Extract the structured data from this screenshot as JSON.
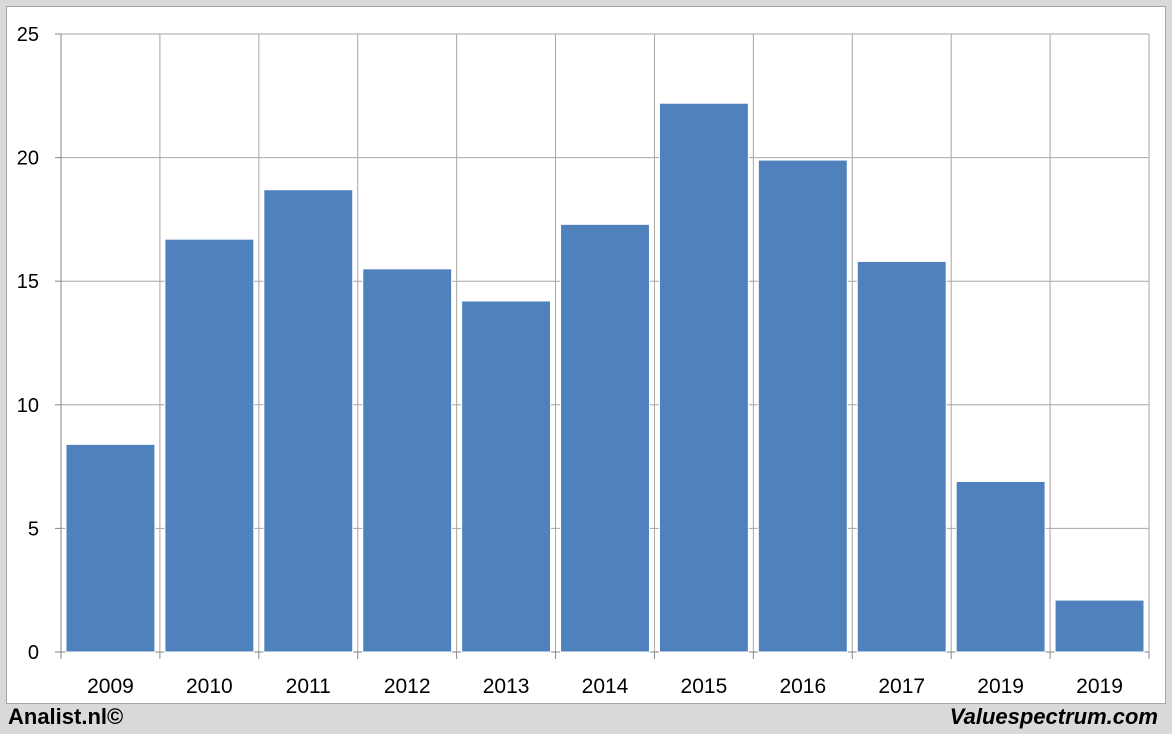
{
  "chart_data": {
    "type": "bar",
    "categories": [
      "2009",
      "2010",
      "2011",
      "2012",
      "2013",
      "2014",
      "2015",
      "2016",
      "2017",
      "2019",
      "2019"
    ],
    "values": [
      8.4,
      16.7,
      18.7,
      15.5,
      14.2,
      17.3,
      22.2,
      19.9,
      15.8,
      6.9,
      2.1
    ],
    "ylim": [
      0,
      25
    ],
    "yticks": [
      "0",
      "5",
      "10",
      "15",
      "20",
      "25"
    ],
    "grid": true,
    "bar_color": "#4f81bd"
  },
  "footer": {
    "left": "Analist.nl©",
    "right": "Valuespectrum.com"
  }
}
